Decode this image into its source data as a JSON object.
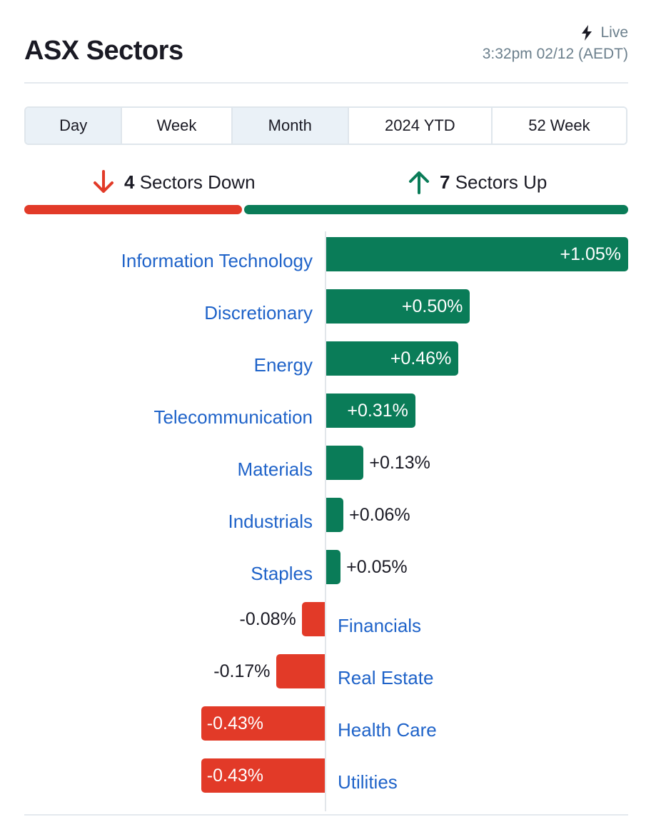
{
  "header": {
    "title": "ASX Sectors",
    "live_label": "Live",
    "timestamp": "3:32pm 02/12 (AEDT)"
  },
  "tabs": [
    "Day",
    "Week",
    "Month",
    "2024 YTD",
    "52 Week"
  ],
  "summary": {
    "down_count": "4",
    "down_label": "Sectors Down",
    "up_count": "7",
    "up_label": "Sectors Up"
  },
  "colors": {
    "up": "#0a7c58",
    "down": "#e23a28",
    "link": "#1f63c9"
  },
  "chart_data": {
    "type": "bar",
    "orientation": "horizontal",
    "categories": [
      "Information Technology",
      "Discretionary",
      "Energy",
      "Telecommunication",
      "Materials",
      "Industrials",
      "Staples",
      "Financials",
      "Real Estate",
      "Health Care",
      "Utilities"
    ],
    "values": [
      1.05,
      0.5,
      0.46,
      0.31,
      0.13,
      0.06,
      0.05,
      -0.08,
      -0.17,
      -0.43,
      -0.43
    ],
    "value_labels": [
      "+1.05%",
      "+0.50%",
      "+0.46%",
      "+0.31%",
      "+0.13%",
      "+0.06%",
      "+0.05%",
      "-0.08%",
      "-0.17%",
      "-0.43%",
      "-0.43%"
    ],
    "unit": "%"
  }
}
